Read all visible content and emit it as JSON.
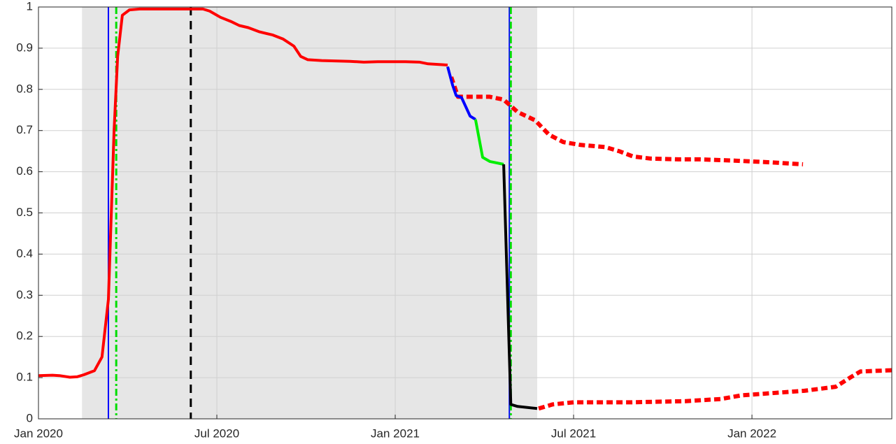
{
  "chart_data": {
    "type": "line",
    "xlim": [
      2020,
      2022.392
    ],
    "xticks": [
      {
        "value": 2020,
        "label": "Jan 2020"
      },
      {
        "value": 2020.5,
        "label": "Jul 2020"
      },
      {
        "value": 2021,
        "label": "Jan 2021"
      },
      {
        "value": 2021.5,
        "label": "Jul 2021"
      },
      {
        "value": 2022,
        "label": "Jan 2022"
      }
    ],
    "ylim": [
      0,
      1
    ],
    "yticks": [
      0,
      0.1,
      0.2,
      0.3,
      0.4,
      0.5,
      0.6,
      0.7,
      0.8,
      0.9,
      1
    ],
    "grid": true,
    "shade": [
      2020.122,
      2021.398
    ],
    "shade_color": "#e6e6e6",
    "vlines": [
      {
        "x": 2020.196,
        "color": "#0000ff",
        "style": "solid"
      },
      {
        "x": 2020.218,
        "color": "#00dd00",
        "style": "dashdot"
      },
      {
        "x": 2020.427,
        "color": "#000000",
        "style": "dashed"
      },
      {
        "x": 2021.32,
        "color": "#0000ff",
        "style": "solid"
      },
      {
        "x": 2021.324,
        "color": "#00dd00",
        "style": "dashdot"
      }
    ],
    "series": [
      {
        "color": "#ff0000",
        "style": "solid",
        "x": [
          2020.0,
          2020.039,
          2020.059,
          2020.088,
          2020.108,
          2020.127,
          2020.157,
          2020.178,
          2020.196,
          2020.212,
          2020.222,
          2020.235,
          2020.255,
          2020.284,
          2020.343,
          2020.402,
          2020.461,
          2020.48,
          2020.51,
          2020.539,
          2020.563,
          2020.588,
          2020.618,
          2020.657,
          2020.686,
          2020.716,
          2020.735,
          2020.755,
          2020.794,
          2020.873,
          2020.912,
          2020.951,
          2021.029,
          2021.069,
          2021.092,
          2021.147
        ],
        "values": [
          0.105,
          0.106,
          0.105,
          0.101,
          0.102,
          0.107,
          0.117,
          0.15,
          0.29,
          0.7,
          0.88,
          0.98,
          0.993,
          0.995,
          0.995,
          0.995,
          0.995,
          0.99,
          0.975,
          0.965,
          0.955,
          0.95,
          0.94,
          0.932,
          0.922,
          0.905,
          0.88,
          0.872,
          0.87,
          0.868,
          0.866,
          0.867,
          0.867,
          0.866,
          0.862,
          0.859
        ]
      },
      {
        "color": "#ff0000",
        "style": "dotted",
        "x": [
          2021.157,
          2021.176,
          2021.206,
          2021.265,
          2021.304,
          2021.343,
          2021.392,
          2021.431,
          2021.471,
          2021.52,
          2021.588,
          2021.627,
          2021.667,
          2021.716,
          2021.794,
          2021.853,
          2021.951,
          2022.049,
          2022.143
        ],
        "values": [
          0.83,
          0.782,
          0.782,
          0.782,
          0.775,
          0.745,
          0.725,
          0.69,
          0.672,
          0.665,
          0.66,
          0.65,
          0.637,
          0.632,
          0.63,
          0.63,
          0.627,
          0.623,
          0.618
        ]
      },
      {
        "color": "#0000ff",
        "style": "solid",
        "x": [
          2021.147,
          2021.161,
          2021.171,
          2021.186,
          2021.21,
          2021.225
        ],
        "values": [
          0.855,
          0.81,
          0.785,
          0.78,
          0.735,
          0.727
        ]
      },
      {
        "color": "#00ee00",
        "style": "solid",
        "x": [
          2021.225,
          2021.245,
          2021.265,
          2021.304
        ],
        "values": [
          0.727,
          0.635,
          0.625,
          0.618
        ]
      },
      {
        "color": "#000000",
        "style": "solid",
        "x": [
          2021.304,
          2021.324,
          2021.343,
          2021.398
        ],
        "values": [
          0.618,
          0.035,
          0.03,
          0.025
        ]
      },
      {
        "color": "#ff0000",
        "style": "dotted",
        "x": [
          2021.402,
          2021.441,
          2021.5,
          2021.657,
          2021.814,
          2021.912,
          2021.971,
          2022.049,
          2022.147,
          2022.235,
          2022.275,
          2022.304,
          2022.392
        ],
        "values": [
          0.025,
          0.035,
          0.04,
          0.04,
          0.043,
          0.048,
          0.057,
          0.062,
          0.068,
          0.078,
          0.1,
          0.115,
          0.118
        ]
      }
    ]
  }
}
